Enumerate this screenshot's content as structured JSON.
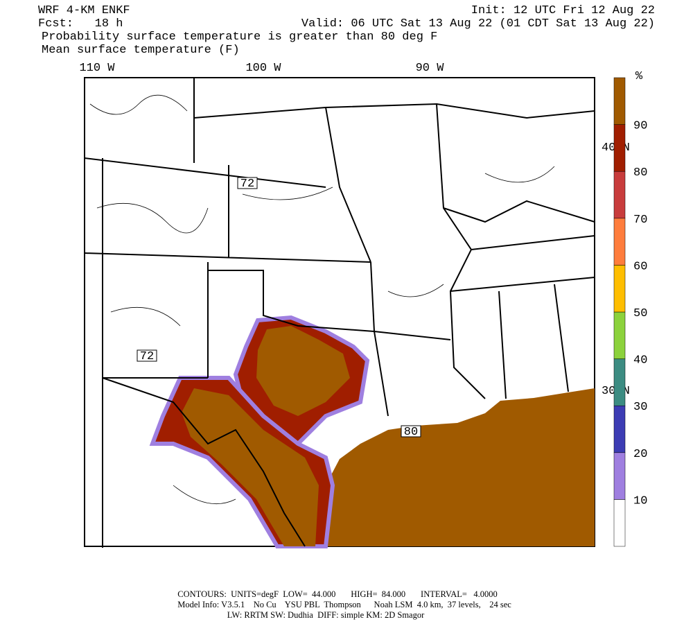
{
  "header": {
    "model": "WRF 4-KM ENKF",
    "fcst": "Fcst:   18 h",
    "init": "Init: 12 UTC Fri 12 Aug 22",
    "valid": "Valid: 06 UTC Sat 13 Aug 22 (01 CDT Sat 13 Aug 22)",
    "field1": "Probability surface temperature is greater than 80 deg F",
    "field2": "Mean surface temperature (F)"
  },
  "map": {
    "longitudes": [
      "110 W",
      "100 W",
      "90 W"
    ],
    "latitudes": [
      "40 N",
      "30 N"
    ],
    "contour_labels": [
      "72",
      "72",
      "80"
    ]
  },
  "colorbar": {
    "unit": "%",
    "labels": [
      "10",
      "20",
      "30",
      "40",
      "50",
      "60",
      "70",
      "80",
      "90"
    ],
    "colors": [
      "#ffffff",
      "#9f7fe0",
      "#3c3cb4",
      "#3c8c82",
      "#8cd23c",
      "#ffbe00",
      "#ff7d3c",
      "#c83c3c",
      "#a01e00",
      "#a05a00"
    ]
  },
  "footer": {
    "line1": "CONTOURS:  UNITS=degF  LOW=  44.000       HIGH=  84.000       INTERVAL=   4.0000",
    "line2": "Model Info: V3.5.1    No Cu    YSU PBL  Thompson      Noah LSM  4.0 km,  37 levels,    24 sec",
    "line3": "LW: RRTM SW: Dudhia  DIFF: simple KM: 2D Smagor"
  }
}
